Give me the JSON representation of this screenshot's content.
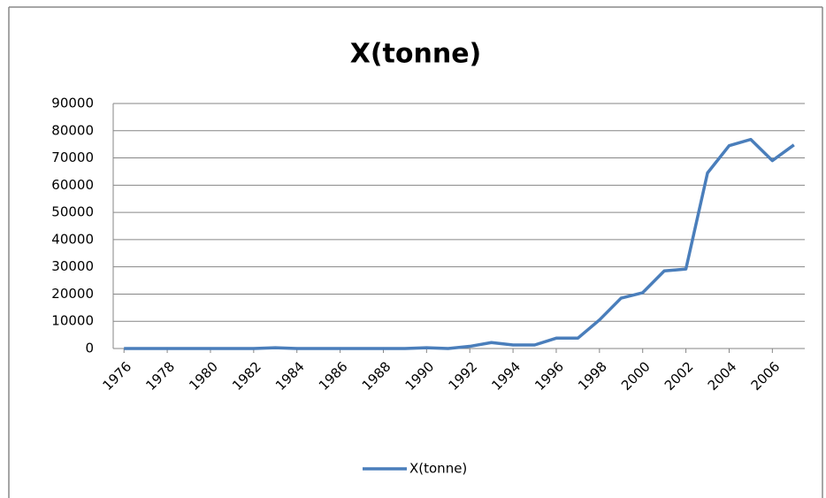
{
  "chart_data": {
    "type": "line",
    "title": "X(tonne)",
    "x": [
      1976,
      1977,
      1978,
      1979,
      1980,
      1981,
      1982,
      1983,
      1984,
      1985,
      1986,
      1987,
      1988,
      1989,
      1990,
      1991,
      1992,
      1993,
      1994,
      1995,
      1996,
      1997,
      1998,
      1999,
      2000,
      2001,
      2002,
      2003,
      2004,
      2005,
      2006,
      2007
    ],
    "xlim": [
      1975.5,
      2007.5
    ],
    "xticks": [
      1976,
      1978,
      1980,
      1982,
      1984,
      1986,
      1988,
      1990,
      1992,
      1994,
      1996,
      1998,
      2000,
      2002,
      2004,
      2006
    ],
    "series": [
      {
        "name": "X(tonne)",
        "color": "#4a7ebb",
        "values": [
          0,
          0,
          0,
          0,
          0,
          0,
          0,
          300,
          0,
          0,
          0,
          0,
          0,
          0,
          300,
          0,
          800,
          2200,
          1300,
          1300,
          3800,
          3800,
          10500,
          18500,
          20500,
          28500,
          29200,
          64500,
          74500,
          76800,
          69000,
          74800
        ]
      }
    ],
    "ylim": [
      0,
      90000
    ],
    "yticks": [
      0,
      10000,
      20000,
      30000,
      40000,
      50000,
      60000,
      70000,
      80000,
      90000
    ],
    "grid": true,
    "legend": "bottom"
  }
}
